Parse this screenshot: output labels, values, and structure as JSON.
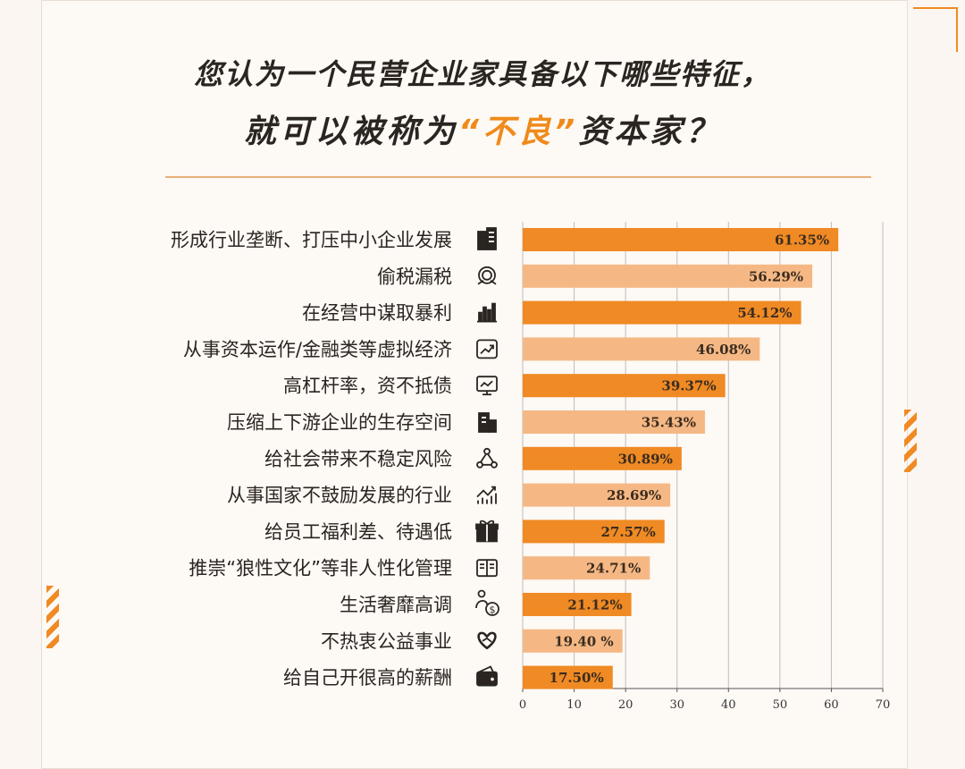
{
  "header": {
    "line1": "您认为一个民营企业家具备以下哪些特征，",
    "line2_prefix": "就可以被称为",
    "line2_highlight": "“不良”",
    "line2_suffix": "资本家？"
  },
  "colors": {
    "bar_dark": "#f08a24",
    "bar_light": "#f5b884",
    "accent": "#ef8a1b",
    "icon": "#2b2521"
  },
  "chart_data": {
    "type": "bar",
    "orientation": "horizontal",
    "categories": [
      "形成行业垄断、打压中小企业发展",
      "偷税漏税",
      "在经营中谋取暴利",
      "从事资本运作/金融类等虚拟经济",
      "高杠杆率，资不抵债",
      "压缩上下游企业的生存空间",
      "给社会带来不稳定风险",
      "从事国家不鼓励发展的行业",
      "给员工福利差、待遇低",
      "推崇“狼性文化”等非人性化管理",
      "生活奢靡高调",
      "不热衷公益事业",
      "给自己开很高的薪酬"
    ],
    "values": [
      61.35,
      56.29,
      54.12,
      46.08,
      39.37,
      35.43,
      30.89,
      28.69,
      27.57,
      24.71,
      21.12,
      19.4,
      17.5
    ],
    "value_labels": [
      "61.35%",
      "56.29%",
      "54.12%",
      "46.08%",
      "39.37%",
      "35.43%",
      "30.89%",
      "28.69%",
      "27.57%",
      "24.71%",
      "21.12%",
      "19.40 %",
      "17.50%"
    ],
    "icons": [
      "buildings-icon",
      "tax-icon",
      "bar-chart-icon",
      "trend-up-icon",
      "monitor-chart-icon",
      "office-icon",
      "network-icon",
      "growth-chart-icon",
      "gift-icon",
      "book-icon",
      "person-money-icon",
      "heart-hand-icon",
      "wallet-icon"
    ],
    "xlim": [
      0,
      70
    ],
    "xticks": [
      "0",
      "10",
      "20",
      "30",
      "40",
      "50",
      "60",
      "70"
    ],
    "xlabel": "",
    "ylabel": "",
    "grid": true
  }
}
